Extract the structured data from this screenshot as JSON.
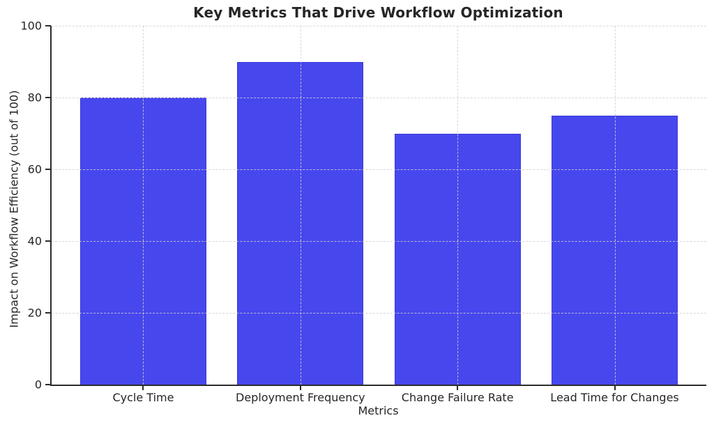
{
  "chart_data": {
    "type": "bar",
    "title": "Key Metrics That Drive Workflow Optimization",
    "xlabel": "Metrics",
    "ylabel": "Impact on Workflow Efficiency (out of 100)",
    "categories": [
      "Cycle Time",
      "Deployment Frequency",
      "Change Failure Rate",
      "Lead Time for Changes"
    ],
    "values": [
      80,
      90,
      70,
      75
    ],
    "ylim": [
      0,
      100
    ],
    "yticks": [
      0,
      20,
      40,
      60,
      80,
      100
    ],
    "legend_position": "none",
    "grid": "both-axes dashed, drawn above bars",
    "colors": {
      "bar_fill": "#4747ee",
      "bar_edge": "#2828be",
      "grid_line": "#d0d0d0",
      "axis_text": "#262626",
      "spine": "#2b2b2b",
      "background": "#ffffff"
    }
  }
}
